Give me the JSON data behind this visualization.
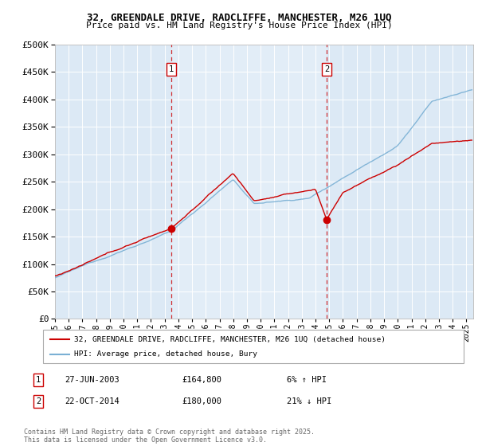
{
  "title_line1": "32, GREENDALE DRIVE, RADCLIFFE, MANCHESTER, M26 1UQ",
  "title_line2": "Price paid vs. HM Land Registry's House Price Index (HPI)",
  "ylim": [
    0,
    500000
  ],
  "yticks": [
    0,
    50000,
    100000,
    150000,
    200000,
    250000,
    300000,
    350000,
    400000,
    450000,
    500000
  ],
  "ytick_labels": [
    "£0",
    "£50K",
    "£100K",
    "£150K",
    "£200K",
    "£250K",
    "£300K",
    "£350K",
    "£400K",
    "£450K",
    "£500K"
  ],
  "background_color": "#dce9f5",
  "grid_color": "#ffffff",
  "red_line_color": "#cc0000",
  "blue_line_color": "#7ab0d4",
  "sale1_x": 2003.49,
  "sale1_y": 164800,
  "sale2_x": 2014.81,
  "sale2_y": 180000,
  "legend_label_red": "32, GREENDALE DRIVE, RADCLIFFE, MANCHESTER, M26 1UQ (detached house)",
  "legend_label_blue": "HPI: Average price, detached house, Bury",
  "note1_label": "1",
  "note1_date": "27-JUN-2003",
  "note1_price": "£164,800",
  "note1_hpi": "6% ↑ HPI",
  "note2_label": "2",
  "note2_date": "22-OCT-2014",
  "note2_price": "£180,000",
  "note2_hpi": "21% ↓ HPI",
  "footer": "Contains HM Land Registry data © Crown copyright and database right 2025.\nThis data is licensed under the Open Government Licence v3.0.",
  "xmin": 1995.0,
  "xmax": 2025.5
}
